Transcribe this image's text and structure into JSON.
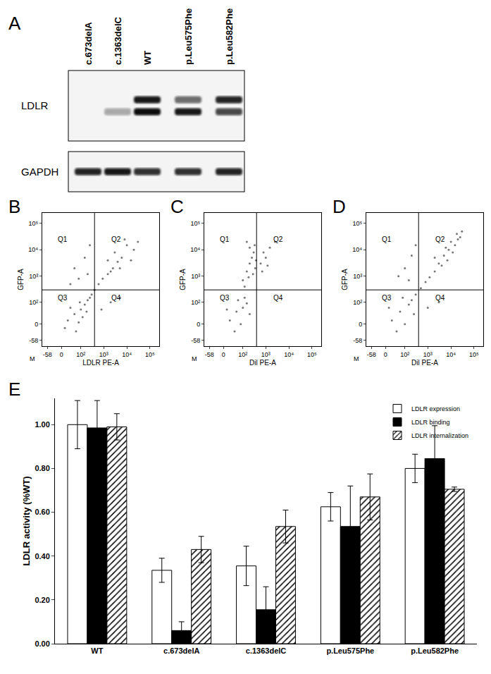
{
  "chart_data": [
    {
      "type": "blot",
      "panel": "A",
      "lanes": [
        "c.673delA",
        "c.1363delC",
        "WT",
        "p.Leu575Phe",
        "p.Leu582Phe"
      ],
      "rows": [
        {
          "label": "LDLR",
          "bands": [
            [
              0,
              0,
              0.9,
              0.55,
              0.85
            ],
            [
              0,
              0.3,
              0.95,
              0.9,
              0.7
            ]
          ]
        },
        {
          "label": "GAPDH",
          "bands": [
            [
              0.85,
              0.9,
              0.8,
              0.8,
              0.85
            ]
          ]
        }
      ]
    },
    {
      "type": "scatter",
      "panel": "B",
      "x_label": "LDLR PE-A",
      "y_label": "GFP-A",
      "corner_label": "M",
      "quadrants": [
        "Q1",
        "Q2",
        "Q3",
        "Q4"
      ],
      "gates": {
        "x": 400,
        "y": 300
      },
      "color": "#777777",
      "xlim": [
        -100,
        250000
      ],
      "ylim": [
        -100,
        250000
      ],
      "xticks": [
        -58,
        0,
        {
          "value": 100,
          "label": "10²"
        },
        {
          "value": 1000,
          "label": "10³"
        },
        {
          "value": 10000,
          "label": "10⁴"
        },
        {
          "value": 100000,
          "label": "10⁵"
        }
      ],
      "yticks": [
        -58,
        0,
        {
          "value": 100,
          "label": "10²"
        },
        {
          "value": 1000,
          "label": "10³"
        },
        {
          "value": 10000,
          "label": "10⁴"
        },
        {
          "value": 100000,
          "label": "10⁵"
        }
      ],
      "x": [
        20,
        50,
        80,
        100,
        150,
        60,
        200,
        30,
        120,
        250,
        10,
        180,
        90,
        300,
        400,
        600,
        900,
        1500,
        2500,
        4000,
        1500,
        3000,
        6000,
        10000,
        20000,
        8000,
        30000,
        5000,
        15000,
        2000,
        50,
        150,
        80,
        250,
        30,
        200,
        800,
        2000,
        5000
      ],
      "y": [
        10,
        30,
        5,
        50,
        80,
        -20,
        120,
        60,
        20,
        150,
        -10,
        40,
        100,
        200,
        300,
        500,
        800,
        1200,
        2000,
        3500,
        4000,
        8000,
        5000,
        15000,
        10000,
        25000,
        20000,
        2000,
        4000,
        1500,
        2000,
        5000,
        800,
        15000,
        500,
        1200,
        50,
        100,
        150
      ]
    },
    {
      "type": "scatter",
      "panel": "C",
      "x_label": "Dil PE-A",
      "y_label": "GFP-A",
      "corner_label": "M",
      "quadrants": [
        "Q1",
        "Q2",
        "Q3",
        "Q4"
      ],
      "gates": {
        "x": 400,
        "y": 300
      },
      "color": "#777777",
      "xlim": [
        -100,
        250000
      ],
      "ylim": [
        -100,
        250000
      ],
      "xticks": [
        -58,
        0,
        {
          "value": 100,
          "label": "10²"
        },
        {
          "value": 1000,
          "label": "10³"
        },
        {
          "value": 10000,
          "label": "10⁴"
        },
        {
          "value": 100000,
          "label": "10⁵"
        }
      ],
      "yticks": [
        -58,
        0,
        {
          "value": 100,
          "label": "10²"
        },
        {
          "value": 1000,
          "label": "10³"
        },
        {
          "value": 10000,
          "label": "10⁴"
        },
        {
          "value": 100000,
          "label": "10⁵"
        }
      ],
      "x": [
        20,
        50,
        80,
        100,
        150,
        40,
        120,
        60,
        200,
        10,
        100,
        150,
        200,
        250,
        300,
        200,
        350,
        120,
        180,
        280,
        380,
        150,
        330,
        600,
        800,
        1000,
        1500,
        700,
        2500,
        1200
      ],
      "y": [
        10,
        40,
        0,
        60,
        90,
        -20,
        150,
        120,
        30,
        50,
        700,
        1500,
        3000,
        5000,
        8000,
        12000,
        2000,
        400,
        900,
        1200,
        4000,
        20000,
        15000,
        3000,
        8000,
        5000,
        12000,
        1500,
        20000,
        2500
      ]
    },
    {
      "type": "scatter",
      "panel": "D",
      "x_label": "Dil PE-A",
      "y_label": "GFP-A",
      "corner_label": "M",
      "quadrants": [
        "Q1",
        "Q2",
        "Q3",
        "Q4"
      ],
      "gates": {
        "x": 400,
        "y": 300
      },
      "color": "#777777",
      "xlim": [
        -100,
        250000
      ],
      "ylim": [
        -100,
        250000
      ],
      "xticks": [
        -58,
        0,
        {
          "value": 100,
          "label": "10²"
        },
        {
          "value": 1000,
          "label": "10³"
        },
        {
          "value": 10000,
          "label": "10⁴"
        },
        {
          "value": 100000,
          "label": "10⁵"
        }
      ],
      "yticks": [
        -58,
        0,
        {
          "value": 100,
          "label": "10²"
        },
        {
          "value": 1000,
          "label": "10³"
        },
        {
          "value": 10000,
          "label": "10⁴"
        },
        {
          "value": 100000,
          "label": "10⁵"
        }
      ],
      "x": [
        20,
        60,
        100,
        150,
        40,
        200,
        80,
        10,
        250,
        300,
        500,
        800,
        1200,
        2000,
        100,
        200,
        300,
        150,
        50,
        3000,
        5000,
        8000,
        10000,
        15000,
        20000,
        6000,
        12000,
        25000,
        4000,
        7000,
        18000,
        2000,
        30000,
        1000,
        3000
      ],
      "y": [
        10,
        40,
        0,
        80,
        -20,
        120,
        150,
        60,
        30,
        200,
        350,
        600,
        900,
        1500,
        2000,
        6000,
        15000,
        700,
        1000,
        3000,
        6000,
        10000,
        20000,
        15000,
        25000,
        12000,
        8000,
        30000,
        2500,
        4000,
        40000,
        5000,
        50000,
        60,
        100
      ]
    },
    {
      "type": "bar",
      "panel": "E",
      "y_label": "LDLR activity (%WT)",
      "categories": [
        "WT",
        "c.673delA",
        "c.1363delC",
        "p.Leu575Phe",
        "p.Leu582Phe"
      ],
      "series": [
        {
          "name": "LDLR expression",
          "color": "#ffffff",
          "marker": "solid",
          "values": [
            1.0,
            0.335,
            0.355,
            0.625,
            0.8
          ],
          "errors": [
            0.11,
            0.055,
            0.09,
            0.065,
            0.065
          ]
        },
        {
          "name": "LDLR binding",
          "color": "#000000",
          "marker": "solid",
          "values": [
            0.985,
            0.06,
            0.155,
            0.535,
            0.845
          ],
          "errors": [
            0.125,
            0.04,
            0.105,
            0.185,
            0.15
          ]
        },
        {
          "name": "LDLR internalization",
          "color": "#ffffff",
          "marker": "hatch",
          "values": [
            0.99,
            0.43,
            0.535,
            0.67,
            0.705
          ],
          "errors": [
            0.06,
            0.06,
            0.075,
            0.105,
            0.01
          ]
        }
      ],
      "ylim": [
        0,
        1.12
      ],
      "yticks": [
        {
          "value": 0,
          "label": "0.00"
        },
        {
          "value": 0.2,
          "label": "0.20"
        },
        {
          "value": 0.4,
          "label": "0.40"
        },
        {
          "value": 0.6,
          "label": "0.60"
        },
        {
          "value": 0.8,
          "label": "0.80"
        },
        {
          "value": 1,
          "label": "1.00"
        }
      ],
      "legend": "upper right"
    }
  ]
}
